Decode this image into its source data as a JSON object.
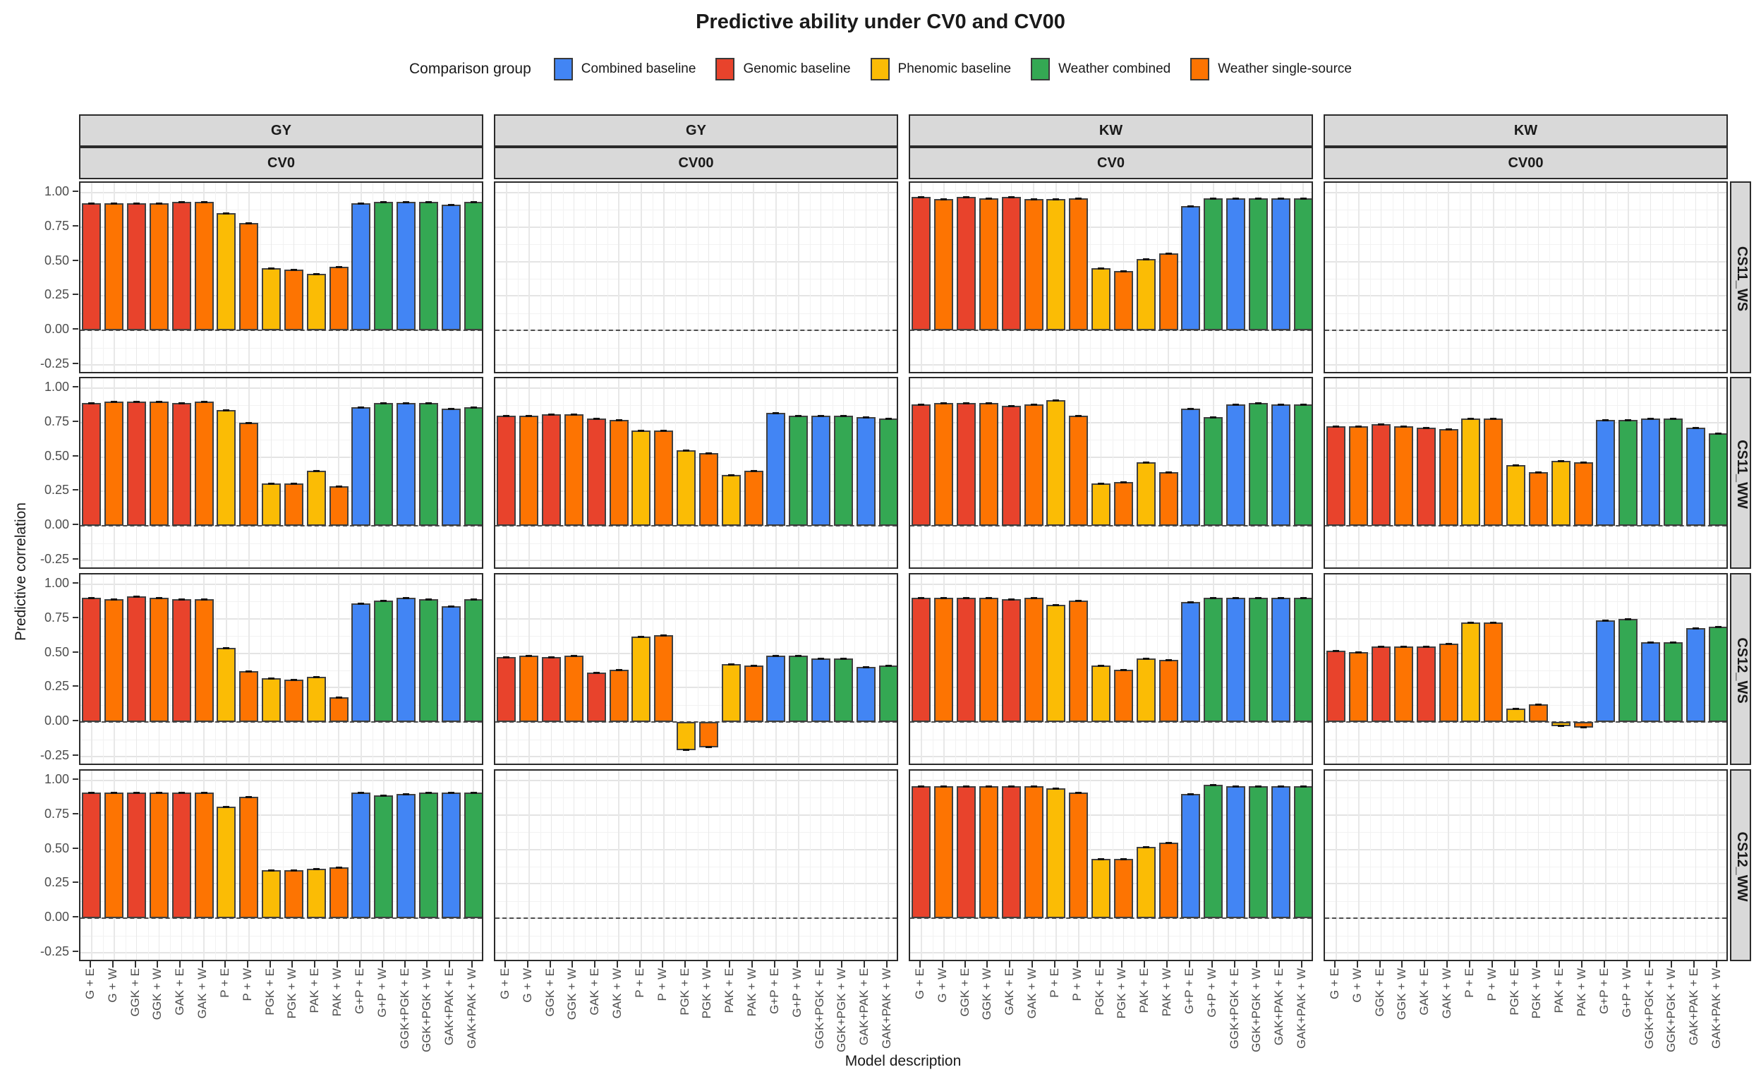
{
  "title": "Predictive ability under CV0 and CV00",
  "legend": {
    "title": "Comparison group",
    "items": [
      {
        "label": "Combined baseline",
        "color": "#4285F4"
      },
      {
        "label": "Genomic baseline",
        "color": "#E8432C"
      },
      {
        "label": "Phenomic baseline",
        "color": "#FBBC05"
      },
      {
        "label": "Weather combined",
        "color": "#34A853"
      },
      {
        "label": "Weather single-source",
        "color": "#FD7402"
      }
    ]
  },
  "axes": {
    "x_title": "Model description",
    "y_title": "Predictive correlation",
    "y_tick_labels": [
      "1.00",
      "0.75",
      "0.50",
      "0.25",
      "0.00",
      "-0.25"
    ],
    "y_tick_values": [
      1.0,
      0.75,
      0.5,
      0.25,
      0.0,
      -0.25
    ]
  },
  "chart_data": {
    "type": "bar",
    "title": "Predictive ability under CV0 and CV00",
    "xlabel": "Model description",
    "ylabel": "Predictive correlation",
    "ylim": [
      -0.32,
      1.07
    ],
    "grid": true,
    "legend_position": "top",
    "zero_line_dashed": true,
    "categories": [
      "G + E",
      "G + W",
      "GGK + E",
      "GGK + W",
      "GAK + E",
      "GAK + W",
      "P + E",
      "P + W",
      "PGK + E",
      "PGK + W",
      "PAK + E",
      "PAK + W",
      "G+P + E",
      "G+P + W",
      "GGK+PGK + E",
      "GGK+PGK + W",
      "GAK+PAK + E",
      "GAK+PAK + W"
    ],
    "category_groups": [
      "Genomic baseline",
      "Weather single-source",
      "Genomic baseline",
      "Weather single-source",
      "Genomic baseline",
      "Weather single-source",
      "Phenomic baseline",
      "Weather single-source",
      "Phenomic baseline",
      "Weather single-source",
      "Phenomic baseline",
      "Weather single-source",
      "Combined baseline",
      "Weather combined",
      "Combined baseline",
      "Weather combined",
      "Combined baseline",
      "Weather combined"
    ],
    "facet_cols": [
      {
        "trait": "GY",
        "cv": "CV0"
      },
      {
        "trait": "GY",
        "cv": "CV00"
      },
      {
        "trait": "KW",
        "cv": "CV0"
      },
      {
        "trait": "KW",
        "cv": "CV00"
      }
    ],
    "facet_rows": [
      "CS11_WS",
      "CS11_WW",
      "CS12_WS",
      "CS12_WW"
    ],
    "panels": [
      {
        "row": "CS11_WS",
        "trait": "GY",
        "cv": "CV0",
        "values": [
          0.92,
          0.92,
          0.92,
          0.92,
          0.93,
          0.93,
          0.85,
          0.78,
          0.45,
          0.44,
          0.41,
          0.46,
          0.92,
          0.93,
          0.93,
          0.93,
          0.91,
          0.93
        ]
      },
      {
        "row": "CS11_WS",
        "trait": "GY",
        "cv": "CV00",
        "values": null
      },
      {
        "row": "CS11_WS",
        "trait": "KW",
        "cv": "CV0",
        "values": [
          0.97,
          0.95,
          0.97,
          0.96,
          0.97,
          0.95,
          0.95,
          0.96,
          0.45,
          0.43,
          0.52,
          0.56,
          0.9,
          0.96,
          0.96,
          0.96,
          0.96,
          0.96
        ]
      },
      {
        "row": "CS11_WS",
        "trait": "KW",
        "cv": "CV00",
        "values": null
      },
      {
        "row": "CS11_WW",
        "trait": "GY",
        "cv": "CV0",
        "values": [
          0.89,
          0.9,
          0.9,
          0.9,
          0.89,
          0.9,
          0.84,
          0.75,
          0.31,
          0.31,
          0.4,
          0.29,
          0.86,
          0.89,
          0.89,
          0.89,
          0.85,
          0.86
        ]
      },
      {
        "row": "CS11_WW",
        "trait": "GY",
        "cv": "CV00",
        "values": [
          0.8,
          0.8,
          0.81,
          0.81,
          0.78,
          0.77,
          0.69,
          0.69,
          0.55,
          0.53,
          0.37,
          0.4,
          0.82,
          0.8,
          0.8,
          0.8,
          0.79,
          0.78
        ]
      },
      {
        "row": "CS11_WW",
        "trait": "KW",
        "cv": "CV0",
        "values": [
          0.88,
          0.89,
          0.89,
          0.89,
          0.87,
          0.88,
          0.91,
          0.8,
          0.31,
          0.32,
          0.46,
          0.39,
          0.85,
          0.79,
          0.88,
          0.89,
          0.88,
          0.88
        ]
      },
      {
        "row": "CS11_WW",
        "trait": "KW",
        "cv": "CV00",
        "values": [
          0.72,
          0.72,
          0.74,
          0.72,
          0.71,
          0.7,
          0.78,
          0.78,
          0.44,
          0.39,
          0.47,
          0.46,
          0.77,
          0.77,
          0.78,
          0.78,
          0.71,
          0.67
        ]
      },
      {
        "row": "CS12_WS",
        "trait": "GY",
        "cv": "CV0",
        "values": [
          0.9,
          0.89,
          0.91,
          0.9,
          0.89,
          0.89,
          0.54,
          0.37,
          0.32,
          0.31,
          0.33,
          0.18,
          0.86,
          0.88,
          0.9,
          0.89,
          0.84,
          0.89
        ]
      },
      {
        "row": "CS12_WS",
        "trait": "GY",
        "cv": "CV00",
        "values": [
          0.47,
          0.48,
          0.47,
          0.48,
          0.36,
          0.38,
          0.62,
          0.63,
          -0.2,
          -0.18,
          0.42,
          0.41,
          0.48,
          0.48,
          0.46,
          0.46,
          0.4,
          0.41
        ]
      },
      {
        "row": "CS12_WS",
        "trait": "KW",
        "cv": "CV0",
        "values": [
          0.9,
          0.9,
          0.9,
          0.9,
          0.89,
          0.9,
          0.85,
          0.88,
          0.41,
          0.38,
          0.46,
          0.45,
          0.87,
          0.9,
          0.9,
          0.9,
          0.9,
          0.9
        ]
      },
      {
        "row": "CS12_WS",
        "trait": "KW",
        "cv": "CV00",
        "values": [
          0.52,
          0.51,
          0.55,
          0.55,
          0.55,
          0.57,
          0.72,
          0.72,
          0.1,
          0.13,
          -0.03,
          -0.04,
          0.74,
          0.75,
          0.58,
          0.58,
          0.68,
          0.69
        ]
      },
      {
        "row": "CS12_WW",
        "trait": "GY",
        "cv": "CV0",
        "values": [
          0.91,
          0.91,
          0.91,
          0.91,
          0.91,
          0.91,
          0.81,
          0.88,
          0.35,
          0.35,
          0.36,
          0.37,
          0.91,
          0.89,
          0.9,
          0.91,
          0.91,
          0.91
        ]
      },
      {
        "row": "CS12_WW",
        "trait": "GY",
        "cv": "CV00",
        "values": null
      },
      {
        "row": "CS12_WW",
        "trait": "KW",
        "cv": "CV0",
        "values": [
          0.96,
          0.96,
          0.96,
          0.96,
          0.96,
          0.96,
          0.94,
          0.91,
          0.43,
          0.43,
          0.52,
          0.55,
          0.9,
          0.97,
          0.96,
          0.96,
          0.96,
          0.96
        ]
      },
      {
        "row": "CS12_WW",
        "trait": "KW",
        "cv": "CV00",
        "values": null
      }
    ]
  }
}
